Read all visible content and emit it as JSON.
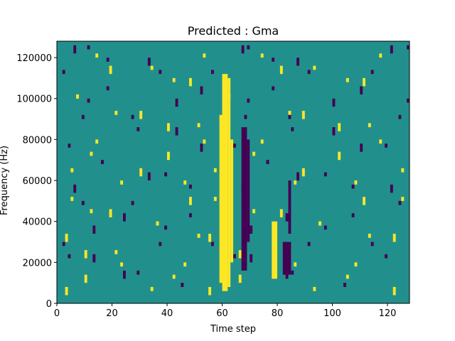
{
  "chart_data": {
    "type": "heatmap",
    "title": "Predicted : Gma",
    "xlabel": "Time step",
    "ylabel": "Frequency (Hz)",
    "xlim": [
      0,
      128
    ],
    "ylim": [
      0,
      128000
    ],
    "xticks": [
      0,
      20,
      40,
      60,
      80,
      100,
      120
    ],
    "yticks": [
      0,
      20000,
      40000,
      60000,
      80000,
      100000,
      120000
    ],
    "ytick_labels": [
      "0",
      "20000",
      "40000",
      "60000",
      "80000",
      "100000",
      "120000"
    ],
    "grid": false,
    "colormap": "viridis",
    "colors": {
      "background": "#21908d",
      "high": "#fde725",
      "low": "#440154"
    },
    "rows": 64,
    "columns": 128,
    "cells": [
      {
        "v": 1,
        "t": [
          3,
          5,
          7,
          10,
          12,
          14,
          19,
          21,
          23,
          30,
          34,
          36,
          40,
          42,
          46,
          48,
          51,
          53,
          55,
          57,
          62,
          66,
          71,
          74,
          81,
          84,
          86,
          89,
          93,
          95,
          102,
          105,
          108,
          111,
          113,
          117,
          122,
          125
        ],
        "f": [
          6000,
          12000,
          18000,
          24000,
          32000,
          38000,
          44000,
          50000,
          58000,
          64000,
          72000,
          78000,
          86000,
          92000,
          100000,
          108000,
          114000,
          120000
        ]
      },
      {
        "v": -1,
        "t": [
          2,
          4,
          6,
          9,
          11,
          13,
          16,
          18,
          24,
          27,
          29,
          33,
          37,
          39,
          43,
          45,
          48,
          52,
          56,
          64,
          67,
          68,
          69,
          70,
          76,
          78,
          83,
          84,
          85,
          87,
          91,
          97,
          100,
          104,
          107,
          110,
          114,
          119,
          121,
          124,
          127
        ],
        "f": [
          8000,
          14000,
          22000,
          28000,
          36000,
          42000,
          48000,
          56000,
          62000,
          68000,
          76000,
          84000,
          90000,
          98000,
          104000,
          112000,
          118000,
          124000
        ]
      }
    ],
    "bands": [
      {
        "v": 1,
        "x": 60,
        "w": 2,
        "f0": 6000,
        "f1": 112000
      },
      {
        "v": 1,
        "x": 62,
        "w": 1,
        "f0": 8000,
        "f1": 110000
      },
      {
        "v": 1,
        "x": 59,
        "w": 1,
        "f0": 10000,
        "f1": 92000
      },
      {
        "v": 1,
        "x": 63,
        "w": 1,
        "f0": 20000,
        "f1": 80000
      },
      {
        "v": -1,
        "x": 67,
        "w": 2,
        "f0": 16000,
        "f1": 86000
      },
      {
        "v": -1,
        "x": 69,
        "w": 1,
        "f0": 30000,
        "f1": 80000
      },
      {
        "v": 1,
        "x": 78,
        "w": 2,
        "f0": 12000,
        "f1": 40000
      },
      {
        "v": -1,
        "x": 82,
        "w": 3,
        "f0": 14000,
        "f1": 30000
      },
      {
        "v": -1,
        "x": 84,
        "w": 1,
        "f0": 34000,
        "f1": 60000
      }
    ]
  }
}
